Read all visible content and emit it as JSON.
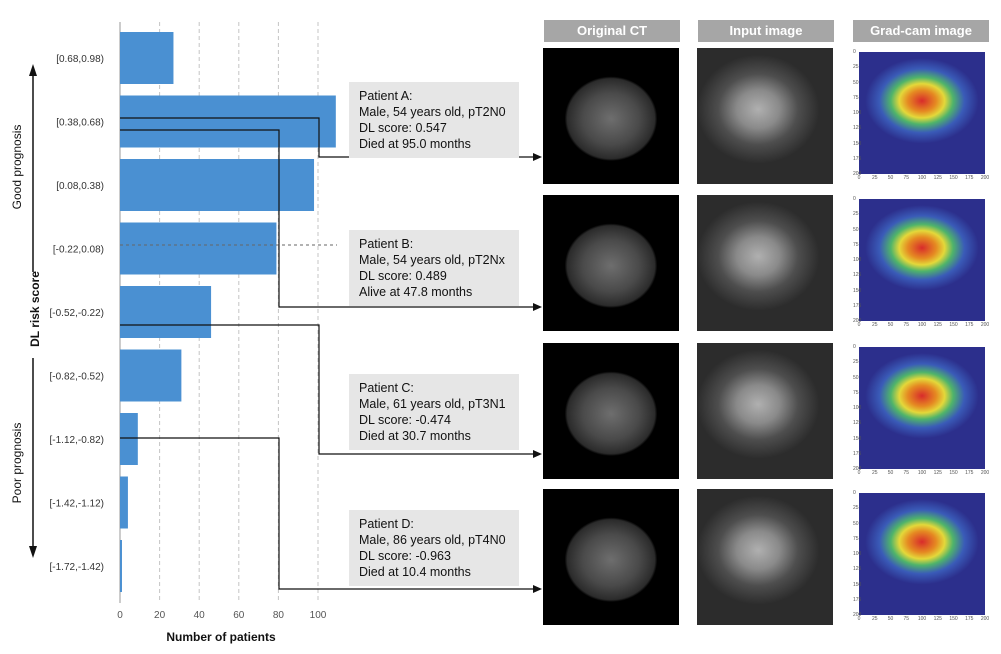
{
  "chart_data": {
    "type": "bar",
    "orientation": "horizontal",
    "categories": [
      "[0.68,0.98)",
      "[0.38,0.68)",
      "[0.08,0.38)",
      "[-0.22,0.08)",
      "[-0.52,-0.22)",
      "[-0.82,-0.52)",
      "[-1.12,-0.82)",
      "[-1.42,-1.12)",
      "[-1.72,-1.42)"
    ],
    "values": [
      27,
      109,
      98,
      79,
      46,
      31,
      9,
      4,
      1
    ],
    "xlabel": "Number of patients",
    "ylabel": "DL risk score",
    "xticks": [
      0,
      20,
      40,
      60,
      80,
      100
    ],
    "xlim": [
      0,
      110
    ],
    "grid": "vertical dashed",
    "bar_color": "#4a90d2",
    "good_prognosis_label": "Good prognosis",
    "poor_prognosis_label": "Poor prognosis"
  },
  "column_headers": [
    "Original CT",
    "Input image",
    "Grad-cam image"
  ],
  "patients": [
    {
      "name": "Patient A:",
      "desc": "Male, 54 years old, pT2N0",
      "score": "DL score: 0.547",
      "outcome": "Died at 95.0 months"
    },
    {
      "name": "Patient B:",
      "desc": "Male, 54 years old, pT2Nx",
      "score": "DL score: 0.489",
      "outcome": "Alive at 47.8 months"
    },
    {
      "name": "Patient C:",
      "desc": "Male, 61 years old, pT3N1",
      "score": "DL score: -0.474",
      "outcome": "Died at 30.7 months"
    },
    {
      "name": "Patient D:",
      "desc": "Male, 86 years old, pT4N0",
      "score": "DL score: -0.963",
      "outcome": "Died at 10.4 months"
    }
  ],
  "gradcam_axis_ticks": [
    "0",
    "25",
    "50",
    "75",
    "100",
    "125",
    "150",
    "175",
    "200"
  ],
  "colors": {
    "bar": "#4a90d2",
    "header_bg": "#a6a6a6",
    "box_bg": "#e6e6e6"
  }
}
